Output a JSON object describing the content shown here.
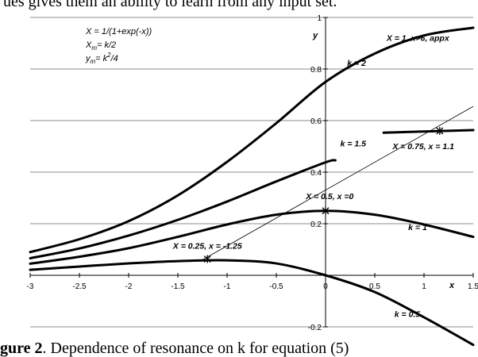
{
  "page": {
    "top_text": "ues gives them an ability to learn from any input set.",
    "caption_bold": "gure 2",
    "caption_rest": ". Dependence of resonance on k for equation (5)"
  },
  "chart_data": {
    "type": "line",
    "title": "",
    "xlabel": "x",
    "ylabel": "y",
    "xlim": [
      -3,
      1.5
    ],
    "ylim": [
      -0.2,
      1
    ],
    "x_ticks": [
      -3,
      -2.5,
      -2,
      -1.5,
      -1,
      -0.5,
      0,
      0.5,
      1,
      1.5
    ],
    "x_tick_labels": [
      "-3",
      "-2.5",
      "-2",
      "-1.5",
      "-1",
      "-0.5",
      "0",
      "0.5",
      "1",
      "1.5"
    ],
    "y_ticks": [
      -0.2,
      0,
      0.2,
      0.4,
      0.6,
      0.8,
      1
    ],
    "y_tick_labels": [
      "-0.2",
      "",
      "0.2",
      "0.4",
      "0.6",
      "0.8",
      "1"
    ],
    "grid": "horizontal",
    "formula_lines": [
      "X = 1/(1+exp(-x))",
      "X",
      "= k/2",
      "y",
      "= k",
      "/4"
    ],
    "series": [
      {
        "name": "k = 2",
        "x": [
          -3,
          -2.5,
          -2,
          -1.5,
          -1,
          -0.5,
          0,
          0.5,
          1,
          1.5
        ],
        "y": [
          0.09,
          0.14,
          0.21,
          0.31,
          0.44,
          0.59,
          0.75,
          0.86,
          0.93,
          0.96
        ]
      },
      {
        "name": "k = 1.5",
        "x": [
          -3,
          -2.5,
          -2,
          -1.5,
          -1,
          -0.5,
          0,
          0.1
        ],
        "y": [
          0.066,
          0.104,
          0.154,
          0.215,
          0.286,
          0.364,
          0.438,
          0.446
        ]
      },
      {
        "name": "k = 1",
        "x": [
          -3,
          -2.5,
          -2,
          -1.5,
          -1,
          -0.5,
          0,
          0.5,
          1,
          1.5
        ],
        "y": [
          0.045,
          0.072,
          0.105,
          0.149,
          0.197,
          0.235,
          0.25,
          0.235,
          0.197,
          0.149
        ]
      },
      {
        "name": "k = 0.5",
        "x": [
          -3,
          -2.5,
          -2,
          -1.5,
          -1,
          -0.5,
          0,
          0.5,
          1,
          1.5
        ],
        "y": [
          0.021,
          0.034,
          0.046,
          0.055,
          0.058,
          0.046,
          0,
          -0.065,
          -0.163,
          -0.27
        ]
      },
      {
        "name": "",
        "x": [
          0.59,
          1.5
        ],
        "y": [
          0.553,
          0.563
        ]
      }
    ],
    "guide_line": {
      "x": [
        -1.25,
        1.5
      ],
      "y": [
        0.06,
        0.655
      ]
    },
    "markers": [
      {
        "x": -1.2,
        "y": 0.063
      },
      {
        "x": 0,
        "y": 0.25
      },
      {
        "x": 1.16,
        "y": 0.56
      }
    ],
    "annotations": [
      {
        "text": "k = 2",
        "x": 0.22,
        "y": 0.812
      },
      {
        "text": "k = 1.5",
        "x": 0.15,
        "y": 0.5
      },
      {
        "text": "k = 1",
        "x": 0.84,
        "y": 0.176
      },
      {
        "text": "k = 0.5",
        "x": 0.7,
        "y": -0.161
      },
      {
        "text": "X = 1, x>6, appx",
        "x": 0.62,
        "y": 0.91
      },
      {
        "text": "X = 0.75, x = 1.1",
        "x": 0.68,
        "y": 0.49
      },
      {
        "text": "X = 0.5, x =0",
        "x": -0.2,
        "y": 0.296
      },
      {
        "text": "X = 0.25, x = -1.25",
        "x": -1.55,
        "y": 0.103
      }
    ]
  }
}
